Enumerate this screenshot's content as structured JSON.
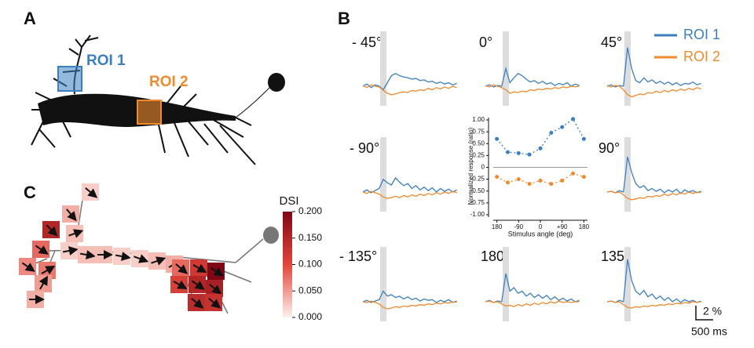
{
  "chart_data": {
    "type": "line",
    "ylabel": "Normalized response (ratio)",
    "xlabel": "Stimulus angle (deg)",
    "x": [
      -180,
      -135,
      -90,
      -45,
      0,
      45,
      90,
      135,
      180
    ],
    "series": [
      {
        "name": "ROI 1",
        "color": "#3b7fc0",
        "values": [
          0.6,
          0.32,
          0.3,
          0.27,
          0.4,
          0.73,
          0.85,
          1.02,
          0.6
        ]
      },
      {
        "name": "ROI 2",
        "color": "#ef8a2d",
        "values": [
          -0.2,
          -0.32,
          -0.25,
          -0.35,
          -0.28,
          -0.35,
          -0.28,
          -0.13,
          -0.2
        ]
      }
    ],
    "xlim": [
      -195,
      195
    ],
    "ylim": [
      -1.05,
      1.05
    ],
    "xticks": [
      {
        "value": -180,
        "label": "180"
      },
      -90,
      0,
      {
        "value": 90,
        "label": "+90"
      },
      180
    ],
    "yticks": [
      {
        "value": 1,
        "label": "1.00"
      },
      {
        "value": 0.75,
        "label": "0.75"
      },
      {
        "value": 0.5,
        "label": "0.50"
      },
      {
        "value": 0.25,
        "label": "0.25"
      },
      0,
      {
        "value": -0.25,
        "label": "-0.25"
      },
      {
        "value": -0.5,
        "label": "-0.50"
      },
      {
        "value": -0.75,
        "label": "-0.75"
      },
      {
        "value": -1,
        "label": "-1.00"
      }
    ]
  },
  "panels": {
    "A": {
      "label": "A",
      "roi1_label": "ROI 1",
      "roi2_label": "ROI 2"
    },
    "B": {
      "label": "B",
      "scale_y": "2 %",
      "scale_x": "500 ms",
      "traces": [
        {
          "direction": "- 45°",
          "roi1": [
            0,
            0.3,
            -0.2,
            0.2,
            0,
            -0.5,
            0.5,
            1.5,
            1.8,
            1.5,
            1.3,
            1.2,
            1.0,
            1.1,
            0.8,
            0.9,
            0.6,
            0.7,
            0.4,
            0.6,
            0.3,
            0.5,
            0.2,
            0.4
          ],
          "roi2": [
            0.1,
            -0.2,
            0.2,
            0,
            -0.1,
            -0.6,
            -1,
            -1.2,
            -1.1,
            -0.9,
            -0.8,
            -0.9,
            -0.6,
            -0.7,
            -0.5,
            -0.6,
            -0.3,
            -0.5,
            -0.2,
            -0.4,
            -0.1,
            -0.3,
            0,
            -0.2
          ]
        },
        {
          "direction": "0°",
          "roi1": [
            0,
            0.2,
            -0.1,
            0.1,
            0,
            2.5,
            0.5,
            1.2,
            1.8,
            1.5,
            1.0,
            0.6,
            0.8,
            0.4,
            0.7,
            0.3,
            0.5,
            0.1,
            0.4,
            0.2,
            0.5,
            0,
            0.3,
            0.1
          ],
          "roi2": [
            0.1,
            -0.1,
            0.2,
            0,
            -0.2,
            -0.5,
            -1.0,
            -0.8,
            -0.9,
            -0.7,
            -0.8,
            -0.5,
            -0.6,
            -0.4,
            -0.5,
            -0.3,
            -0.4,
            -0.2,
            -0.3,
            -0.1,
            -0.2,
            0,
            -0.1,
            0
          ]
        },
        {
          "direction": "45°",
          "roi1": [
            0,
            0.2,
            -0.1,
            0.1,
            0,
            5.5,
            2.5,
            0.8,
            0.5,
            1.2,
            0.6,
            0.9,
            0.4,
            0.7,
            0.3,
            0.6,
            0.2,
            0.5,
            0.1,
            0.4,
            0.3,
            0.6,
            0.2,
            0.4
          ],
          "roi2": [
            0.1,
            -0.1,
            0.1,
            0,
            -0.5,
            -1.2,
            -1.5,
            -1.3,
            -1.1,
            -1.2,
            -0.9,
            -1,
            -0.7,
            -0.9,
            -0.6,
            -0.8,
            -0.5,
            -0.7,
            -0.4,
            -0.6,
            -0.3,
            -0.5,
            -0.2,
            -0.4
          ]
        },
        {
          "direction": "- 90°",
          "roi1": [
            0,
            0.3,
            -0.1,
            0.2,
            0.5,
            1.8,
            1.3,
            1.0,
            2.0,
            1.4,
            0.9,
            1.2,
            0.5,
            0.9,
            0.3,
            0.7,
            0.2,
            0.6,
            0,
            0.5,
            0.1,
            0.4,
            0,
            0.3
          ],
          "roi2": [
            0,
            -0.2,
            0.1,
            -0.1,
            -0.3,
            -0.7,
            -0.9,
            -0.8,
            -0.6,
            -0.8,
            -0.5,
            -0.7,
            -0.4,
            -0.6,
            -0.3,
            -0.5,
            -0.2,
            -0.4,
            -0.1,
            -0.3,
            0,
            -0.2,
            0.1,
            -0.1
          ]
        },
        {
          "direction": "90°",
          "roi1": [
            0,
            0.1,
            -0.1,
            0.2,
            0,
            5.0,
            2.8,
            1.2,
            0.6,
            0.9,
            0.2,
            0.5,
            0.1,
            0.4,
            -0.1,
            0.3,
            0,
            0.4,
            -0.2,
            0.3,
            0,
            0.2,
            -0.1,
            0.1
          ],
          "roi2": [
            0,
            0.1,
            -0.1,
            0,
            -0.4,
            -0.9,
            -1.1,
            -1.0,
            -0.8,
            -0.9,
            -0.6,
            -0.7,
            -0.5,
            -0.6,
            -0.3,
            -0.5,
            -0.2,
            -0.4,
            -0.1,
            -0.3,
            0,
            -0.2,
            0,
            -0.1
          ]
        },
        {
          "direction": "- 135°",
          "roi1": [
            0,
            0.2,
            -0.1,
            0.1,
            0.3,
            1.5,
            0.8,
            1.0,
            0.6,
            0.8,
            0.4,
            0.7,
            0.3,
            0.5,
            0.1,
            0.4,
            0.2,
            0.3,
            -0.1,
            0.2,
            0,
            0.3,
            -0.1,
            0.1
          ],
          "roi2": [
            0,
            -0.1,
            0.1,
            -0.1,
            -0.3,
            -0.8,
            -1.0,
            -0.9,
            -0.7,
            -0.8,
            -0.6,
            -0.7,
            -0.5,
            -0.6,
            -0.4,
            -0.5,
            -0.3,
            -0.4,
            -0.2,
            -0.3,
            -0.1,
            -0.2,
            0,
            -0.1
          ]
        },
        {
          "direction": "180°",
          "roi1": [
            0,
            0.2,
            -0.1,
            0.1,
            0,
            4.0,
            1.5,
            2.0,
            1.2,
            1.5,
            0.8,
            1.2,
            0.6,
            1.0,
            0.5,
            0.9,
            0.3,
            0.7,
            0.2,
            0.5,
            0.1,
            0.4,
            0,
            0.2
          ],
          "roi2": [
            0,
            0.1,
            -0.1,
            0,
            -0.3,
            -0.6,
            -0.5,
            -0.7,
            -0.4,
            -0.6,
            -0.3,
            -0.5,
            -0.2,
            -0.4,
            -0.1,
            -0.3,
            0,
            -0.2,
            0.1,
            -0.1,
            0,
            -0.1,
            0,
            0
          ]
        },
        {
          "direction": "135°",
          "roi1": [
            0,
            0.1,
            -0.1,
            0.2,
            0,
            6.0,
            3.0,
            1.5,
            1.0,
            1.6,
            0.7,
            1.1,
            0.4,
            0.8,
            0.2,
            0.6,
            0,
            0.4,
            -0.1,
            0.3,
            0,
            0.2,
            -0.1,
            0.1
          ],
          "roi2": [
            0,
            0.1,
            -0.1,
            0,
            -0.4,
            -0.8,
            -0.9,
            -0.7,
            -0.8,
            -0.6,
            -0.7,
            -0.5,
            -0.6,
            -0.4,
            -0.5,
            -0.3,
            -0.4,
            -0.2,
            -0.3,
            -0.1,
            -0.2,
            0,
            -0.1,
            0
          ]
        }
      ]
    },
    "C": {
      "label": "C",
      "colorbar_title": "DSI",
      "dsi_lim": [
        0,
        0.2
      ],
      "colorbar_ticks": [
        {
          "value": 0.2,
          "label": "0.200"
        },
        {
          "value": 0.15,
          "label": "0.150"
        },
        {
          "value": 0.1,
          "label": "0.100"
        },
        {
          "value": 0.05,
          "label": "0.050"
        },
        {
          "value": 0,
          "label": "0.000"
        }
      ],
      "squares": [
        {
          "dsi": 0.02,
          "angle": 40
        },
        {
          "dsi": 0.04,
          "angle": 50
        },
        {
          "dsi": 0.03,
          "angle": -20
        },
        {
          "dsi": 0.15,
          "angle": 45
        },
        {
          "dsi": 0.02,
          "angle": -10
        },
        {
          "dsi": 0.08,
          "angle": 35
        },
        {
          "dsi": 0.07,
          "angle": -30
        },
        {
          "dsi": 0.06,
          "angle": 35
        },
        {
          "dsi": 0.05,
          "angle": -60
        },
        {
          "dsi": 0.04,
          "angle": 0
        },
        {
          "dsi": 0.03,
          "angle": 10
        },
        {
          "dsi": 0.03,
          "angle": 0
        },
        {
          "dsi": 0.02,
          "angle": 10
        },
        {
          "dsi": 0.02,
          "angle": 20
        },
        {
          "dsi": 0.03,
          "angle": -20
        },
        {
          "dsi": 0.04,
          "angle": -30
        },
        {
          "dsi": 0.08,
          "angle": 40
        },
        {
          "dsi": 0.12,
          "angle": 30
        },
        {
          "dsi": 0.2,
          "angle": 35
        },
        {
          "dsi": 0.11,
          "angle": 30
        },
        {
          "dsi": 0.15,
          "angle": 35
        },
        {
          "dsi": 0.16,
          "angle": 40
        },
        {
          "dsi": 0.14,
          "angle": 40
        },
        {
          "dsi": 0.13,
          "angle": 40
        }
      ]
    }
  }
}
